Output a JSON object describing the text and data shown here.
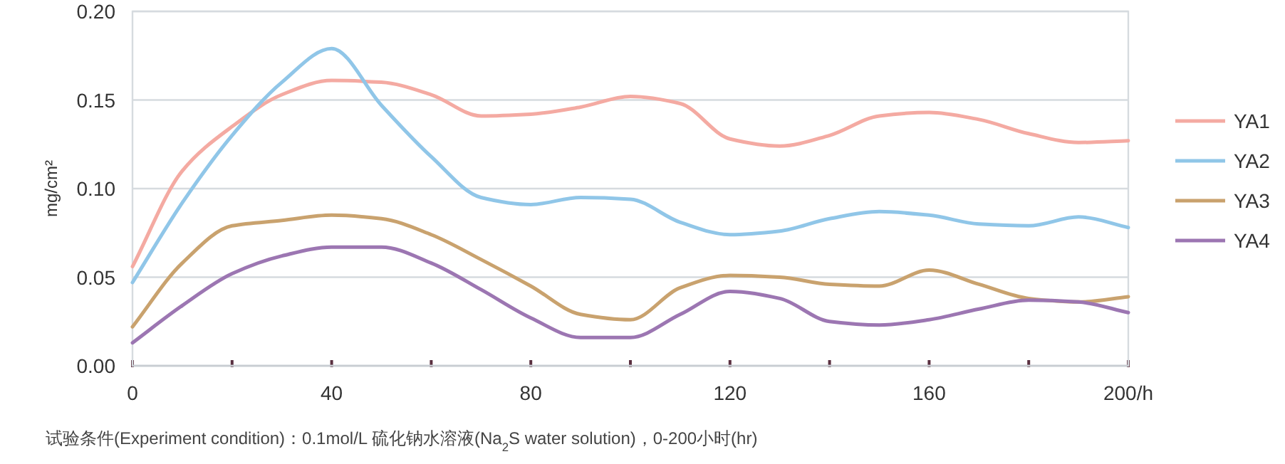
{
  "chart_data": {
    "type": "line",
    "ylabel": "mg/cm²",
    "x": [
      0,
      10,
      20,
      30,
      40,
      50,
      60,
      70,
      80,
      90,
      100,
      110,
      120,
      130,
      140,
      150,
      160,
      170,
      180,
      190,
      200
    ],
    "series": [
      {
        "name": "YA1",
        "color": "#f4aaa2",
        "values": [
          0.056,
          0.11,
          0.135,
          0.153,
          0.161,
          0.16,
          0.153,
          0.141,
          0.142,
          0.146,
          0.152,
          0.148,
          0.128,
          0.124,
          0.13,
          0.141,
          0.143,
          0.139,
          0.131,
          0.126,
          0.127
        ]
      },
      {
        "name": "YA2",
        "color": "#90c6e8",
        "values": [
          0.047,
          0.092,
          0.13,
          0.16,
          0.179,
          0.147,
          0.118,
          0.095,
          0.091,
          0.095,
          0.094,
          0.081,
          0.074,
          0.076,
          0.083,
          0.087,
          0.085,
          0.08,
          0.079,
          0.084,
          0.078
        ]
      },
      {
        "name": "YA3",
        "color": "#c9a26e",
        "values": [
          0.022,
          0.058,
          0.079,
          0.082,
          0.085,
          0.083,
          0.074,
          0.06,
          0.045,
          0.029,
          0.026,
          0.044,
          0.051,
          0.05,
          0.046,
          0.045,
          0.054,
          0.046,
          0.038,
          0.036,
          0.039
        ]
      },
      {
        "name": "YA4",
        "color": "#9c76b2",
        "values": [
          0.013,
          0.034,
          0.052,
          0.062,
          0.067,
          0.067,
          0.058,
          0.043,
          0.027,
          0.016,
          0.016,
          0.029,
          0.042,
          0.038,
          0.025,
          0.023,
          0.026,
          0.032,
          0.037,
          0.036,
          0.03
        ]
      }
    ],
    "xlim": [
      0,
      200
    ],
    "xticks": [
      0,
      {
        "value": 20,
        "label": null
      },
      40,
      {
        "value": 60,
        "label": null
      },
      80,
      {
        "value": 100,
        "label": null
      },
      120,
      {
        "value": 140,
        "label": null
      },
      160,
      {
        "value": 180,
        "label": null
      },
      {
        "value": 200,
        "label": "200/h"
      }
    ],
    "ylim": [
      0,
      0.2
    ],
    "yticks": [
      {
        "value": 0,
        "label": "0.00"
      },
      {
        "value": 0.05,
        "label": "0.05"
      },
      {
        "value": 0.1,
        "label": "0.10"
      },
      {
        "value": 0.15,
        "label": "0.15"
      },
      {
        "value": 0.2,
        "label": "0.20"
      }
    ],
    "grid": "y",
    "legend": "right",
    "marker": "none",
    "line_style": "solid",
    "annotations": [
      "试验条件(Experiment condition)：0.1mol/L  硫化钠水溶液(Na$_{2}$S water solution)，0-200小时(hr)"
    ]
  }
}
